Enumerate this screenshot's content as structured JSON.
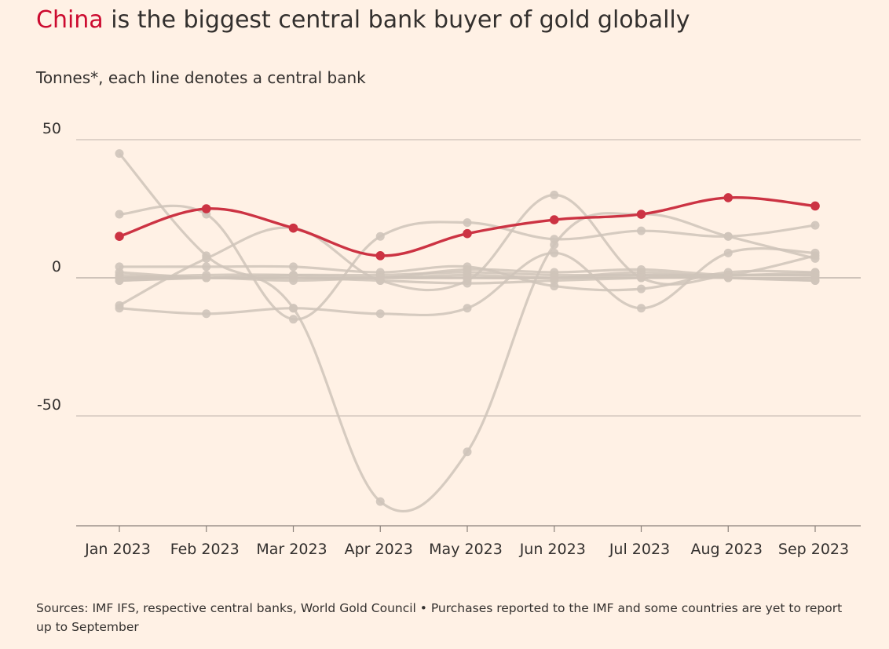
{
  "title": {
    "highlight": "China",
    "rest": " is the biggest central bank buyer of gold globally"
  },
  "subtitle": "Tonnes*, each line denotes a central bank",
  "source": "Sources: IMF IFS, respective central banks, World Gold Council • Purchases reported to the IMF and some countries are yet to report up to September",
  "colors": {
    "background": "#fff1e5",
    "highlight": "#cc3343",
    "others": "#cfc4ba",
    "grid": "#bfb4ab",
    "text": "#33302e"
  },
  "chart_data": {
    "type": "line",
    "categories": [
      "Jan 2023",
      "Feb 2023",
      "Mar 2023",
      "Apr 2023",
      "May 2023",
      "Jun 2023",
      "Jul 2023",
      "Aug 2023",
      "Sep 2023"
    ],
    "ylim": [
      -90,
      50
    ],
    "yticks": [
      {
        "value": 50,
        "label": "50"
      },
      {
        "value": 0,
        "label": "0"
      },
      {
        "value": -50,
        "label": "-50"
      }
    ],
    "grid": true,
    "highlight_series": {
      "name": "China",
      "values": [
        15,
        25,
        18,
        8,
        16,
        21,
        23,
        29,
        26
      ]
    },
    "series": [
      {
        "values": [
          45,
          8,
          -11,
          -81,
          -63,
          12,
          23,
          15,
          7
        ]
      },
      {
        "values": [
          23,
          23,
          -15,
          15,
          20,
          14,
          17,
          15,
          19
        ]
      },
      {
        "values": [
          -11,
          -13,
          -11,
          -13,
          -11,
          9,
          -11,
          9,
          9
        ]
      },
      {
        "values": [
          -10,
          7,
          18,
          -1,
          -1,
          30,
          0,
          1,
          8
        ]
      },
      {
        "values": [
          4,
          4,
          4,
          2,
          4,
          -3,
          -4,
          2,
          2
        ]
      },
      {
        "values": [
          1,
          0,
          0,
          0,
          3,
          2,
          3,
          1,
          2
        ]
      },
      {
        "values": [
          -1,
          0,
          1,
          1,
          2,
          1,
          1,
          0,
          0
        ]
      },
      {
        "values": [
          0,
          0,
          0,
          0,
          1,
          0,
          1,
          1,
          1
        ]
      },
      {
        "values": [
          0,
          1,
          1,
          0,
          0,
          0,
          0,
          0,
          -1
        ]
      },
      {
        "values": [
          2,
          0,
          0,
          -1,
          -2,
          -1,
          0,
          1,
          1
        ]
      },
      {
        "values": [
          -1,
          0,
          -1,
          0,
          0,
          0,
          2,
          0,
          -1
        ]
      }
    ]
  }
}
